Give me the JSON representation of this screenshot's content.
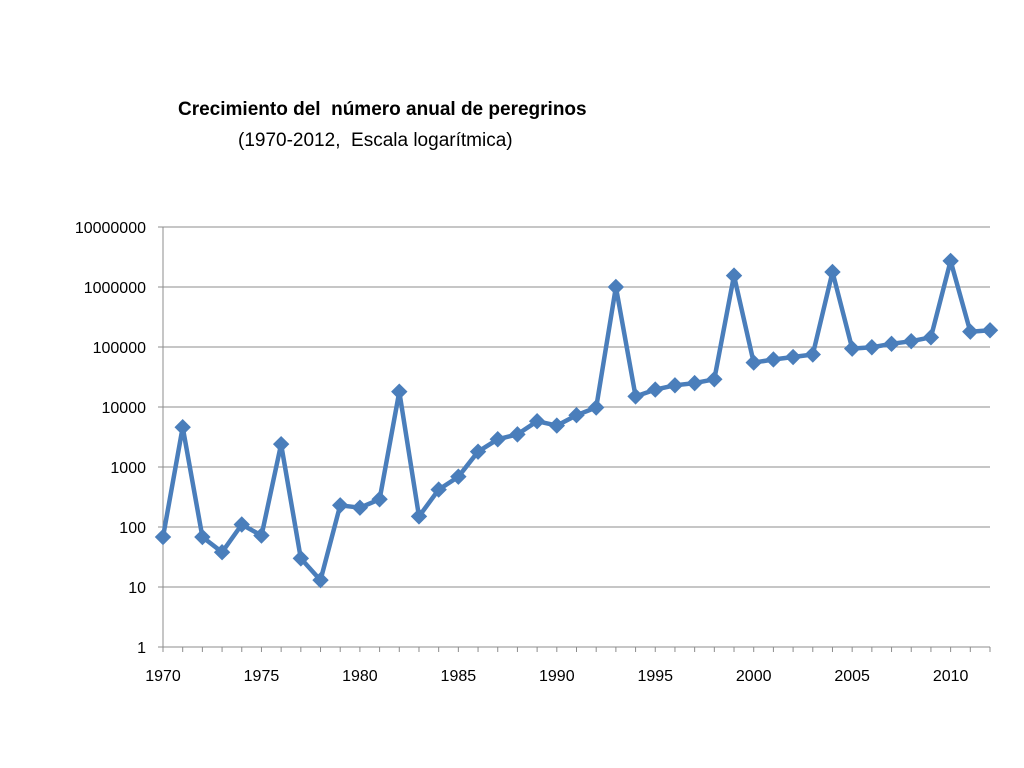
{
  "chart_data": {
    "type": "line",
    "title": "Crecimiento del  número anual de peregrinos",
    "subtitle": "(1970-2012,  Escala logarítmica)",
    "xlabel": "",
    "ylabel": "",
    "y_scale": "log",
    "ylim": [
      1,
      10000000
    ],
    "xlim": [
      1970,
      2012
    ],
    "grid": true,
    "legend": "none",
    "series_color": "#4a7ebb",
    "x_ticks": [
      "1970",
      "1975",
      "1980",
      "1985",
      "1990",
      "1995",
      "2000",
      "2005",
      "2010"
    ],
    "y_ticks": [
      "1",
      "10",
      "100",
      "1000",
      "10000",
      "100000",
      "1000000",
      "10000000"
    ],
    "series": [
      {
        "x": [
          1970,
          1971,
          1972,
          1973,
          1974,
          1975,
          1976,
          1977,
          1978,
          1979,
          1980,
          1981,
          1982,
          1983,
          1984,
          1985,
          1986,
          1987,
          1988,
          1989,
          1990,
          1991,
          1992,
          1993,
          1994,
          1995,
          1996,
          1997,
          1998,
          1999,
          2000,
          2001,
          2002,
          2003,
          2004,
          2005,
          2006,
          2007,
          2008,
          2009,
          2010,
          2011,
          2012
        ],
        "values": [
          68,
          4600,
          68,
          38,
          110,
          72,
          2400,
          30,
          13,
          230,
          210,
          290,
          18000,
          150,
          420,
          690,
          1800,
          2900,
          3500,
          5800,
          4900,
          7300,
          9800,
          1000000,
          15000,
          19500,
          23000,
          25000,
          29000,
          1550000,
          55000,
          62000,
          68000,
          75000,
          1780000,
          94000,
          99000,
          113000,
          125000,
          145000,
          2720000,
          180000,
          190000
        ]
      }
    ]
  }
}
